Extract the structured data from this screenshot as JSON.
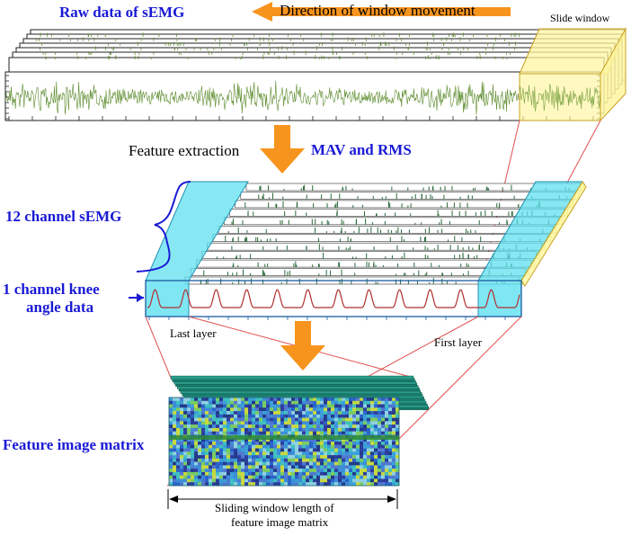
{
  "labels": {
    "raw_data": "Raw data of sEMG",
    "direction": "Direction of window movement",
    "slide_window": "Slide window",
    "feature_extraction": "Feature extraction",
    "mav_rms": "MAV and RMS",
    "channel_semg": "12 channel sEMG",
    "knee_line1": "1 channel knee",
    "knee_line2": "angle data",
    "last_layer": "Last layer",
    "first_layer": "First layer",
    "feature_image_matrix": "Feature image matrix",
    "sliding_line1": "Sliding window length of",
    "sliding_line2": "feature image matrix"
  },
  "colors": {
    "label_blue": "#1a1ad6",
    "arrow_orange": "#f7941d",
    "signal_green": "#5a8a2a",
    "slide_window_fill": "#fff7a8",
    "feature_window_fill": "#5fe0f0",
    "connector_red": "#e05050",
    "knee_curve": "#b03030"
  }
}
